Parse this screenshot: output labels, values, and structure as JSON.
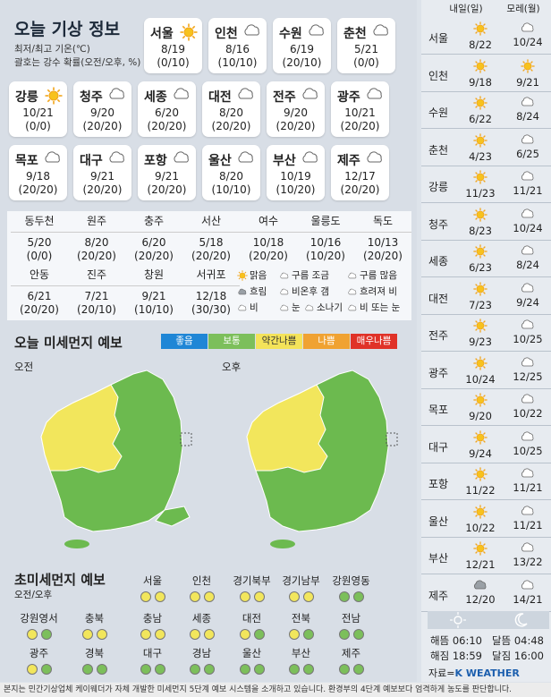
{
  "title": "오늘 기상 정보",
  "subtitle_line1": "최저/최고 기온(℃)",
  "subtitle_line2": "괄호는 강수 확률(오전/오후, %)",
  "cities": [
    {
      "name": "서울",
      "icon": "sun",
      "temp": "8/19",
      "rain": "(0/10)"
    },
    {
      "name": "인천",
      "icon": "cloud",
      "temp": "8/16",
      "rain": "(10/10)"
    },
    {
      "name": "수원",
      "icon": "cloud",
      "temp": "6/19",
      "rain": "(20/10)"
    },
    {
      "name": "춘천",
      "icon": "cloud",
      "temp": "5/21",
      "rain": "(0/0)"
    },
    {
      "name": "강릉",
      "icon": "sun",
      "temp": "10/21",
      "rain": "(0/0)"
    },
    {
      "name": "청주",
      "icon": "cloud",
      "temp": "9/20",
      "rain": "(20/20)"
    },
    {
      "name": "세종",
      "icon": "cloud",
      "temp": "6/20",
      "rain": "(20/20)"
    },
    {
      "name": "대전",
      "icon": "cloud",
      "temp": "8/20",
      "rain": "(20/20)"
    },
    {
      "name": "전주",
      "icon": "cloud",
      "temp": "9/20",
      "rain": "(20/20)"
    },
    {
      "name": "광주",
      "icon": "cloud",
      "temp": "10/21",
      "rain": "(20/20)"
    },
    {
      "name": "목포",
      "icon": "cloud",
      "temp": "9/18",
      "rain": "(20/20)"
    },
    {
      "name": "대구",
      "icon": "cloud",
      "temp": "9/21",
      "rain": "(20/20)"
    },
    {
      "name": "포항",
      "icon": "cloud",
      "temp": "9/21",
      "rain": "(20/20)"
    },
    {
      "name": "울산",
      "icon": "cloud",
      "temp": "8/20",
      "rain": "(10/10)"
    },
    {
      "name": "부산",
      "icon": "cloud",
      "temp": "10/19",
      "rain": "(10/20)"
    },
    {
      "name": "제주",
      "icon": "cloud",
      "temp": "12/17",
      "rain": "(20/20)"
    }
  ],
  "small_cities": [
    {
      "name": "동두천",
      "temp": "5/20",
      "rain": "(0/0)"
    },
    {
      "name": "원주",
      "temp": "8/20",
      "rain": "(20/20)"
    },
    {
      "name": "충주",
      "temp": "6/20",
      "rain": "(20/20)"
    },
    {
      "name": "서산",
      "temp": "5/18",
      "rain": "(20/20)"
    },
    {
      "name": "여수",
      "temp": "10/18",
      "rain": "(20/20)"
    },
    {
      "name": "울릉도",
      "temp": "10/16",
      "rain": "(10/20)"
    },
    {
      "name": "독도",
      "temp": "10/13",
      "rain": "(20/20)"
    },
    {
      "name": "안동",
      "temp": "6/21",
      "rain": "(20/20)"
    },
    {
      "name": "진주",
      "temp": "7/21",
      "rain": "(20/10)"
    },
    {
      "name": "창원",
      "temp": "9/21",
      "rain": "(10/10)"
    },
    {
      "name": "서귀포",
      "temp": "12/18",
      "rain": "(30/30)"
    }
  ],
  "weather_legend": [
    "맑음",
    "구름 조금",
    "구름 많음",
    "흐림",
    "비온후 갬",
    "흐려져 비",
    "비",
    "눈",
    "소나기",
    "비 또는 눈"
  ],
  "dust": {
    "title": "오늘 미세먼지 예보",
    "levels": [
      {
        "label": "좋음",
        "color": "#1f86d6"
      },
      {
        "label": "보통",
        "color": "#7cbf5b"
      },
      {
        "label": "약간나쁨",
        "color": "#f4e35a"
      },
      {
        "label": "나쁨",
        "color": "#f0a232"
      },
      {
        "label": "매우나쁨",
        "color": "#e03228"
      }
    ],
    "am": "오전",
    "pm": "오후"
  },
  "fine_dust": {
    "title": "초미세먼지 예보",
    "subtitle": "오전/오후",
    "regions": [
      {
        "name": "서울",
        "am": "yellow",
        "pm": "yellow"
      },
      {
        "name": "인천",
        "am": "yellow",
        "pm": "yellow"
      },
      {
        "name": "경기북부",
        "am": "yellow",
        "pm": "yellow"
      },
      {
        "name": "경기남부",
        "am": "yellow",
        "pm": "yellow"
      },
      {
        "name": "강원영동",
        "am": "green",
        "pm": "green"
      },
      {
        "name": "강원영서",
        "am": "yellow",
        "pm": "green"
      },
      {
        "name": "충북",
        "am": "yellow",
        "pm": "yellow"
      },
      {
        "name": "충남",
        "am": "yellow",
        "pm": "yellow"
      },
      {
        "name": "세종",
        "am": "yellow",
        "pm": "yellow"
      },
      {
        "name": "대전",
        "am": "yellow",
        "pm": "green"
      },
      {
        "name": "전북",
        "am": "yellow",
        "pm": "green"
      },
      {
        "name": "전남",
        "am": "green",
        "pm": "green"
      },
      {
        "name": "광주",
        "am": "yellow",
        "pm": "green"
      },
      {
        "name": "경북",
        "am": "green",
        "pm": "green"
      },
      {
        "name": "대구",
        "am": "green",
        "pm": "green"
      },
      {
        "name": "경남",
        "am": "green",
        "pm": "green"
      },
      {
        "name": "울산",
        "am": "green",
        "pm": "green"
      },
      {
        "name": "부산",
        "am": "green",
        "pm": "green"
      },
      {
        "name": "제주",
        "am": "green",
        "pm": "green"
      }
    ]
  },
  "forecast": {
    "col1": "내일(일)",
    "col2": "모레(월)",
    "rows": [
      {
        "name": "서울",
        "d1_icon": "sun",
        "d1": "8/22",
        "d2_icon": "cloud",
        "d2": "10/24"
      },
      {
        "name": "인천",
        "d1_icon": "sun",
        "d1": "9/18",
        "d2_icon": "sun",
        "d2": "9/21"
      },
      {
        "name": "수원",
        "d1_icon": "sun",
        "d1": "6/22",
        "d2_icon": "cloud",
        "d2": "8/24"
      },
      {
        "name": "춘천",
        "d1_icon": "sun",
        "d1": "4/23",
        "d2_icon": "cloud",
        "d2": "6/25"
      },
      {
        "name": "강릉",
        "d1_icon": "sun",
        "d1": "11/23",
        "d2_icon": "cloud",
        "d2": "11/21"
      },
      {
        "name": "청주",
        "d1_icon": "sun",
        "d1": "8/23",
        "d2_icon": "cloud",
        "d2": "10/24"
      },
      {
        "name": "세종",
        "d1_icon": "sun",
        "d1": "6/23",
        "d2_icon": "cloud",
        "d2": "8/24"
      },
      {
        "name": "대전",
        "d1_icon": "sun",
        "d1": "7/23",
        "d2_icon": "cloud",
        "d2": "9/24"
      },
      {
        "name": "전주",
        "d1_icon": "sun",
        "d1": "9/23",
        "d2_icon": "cloud",
        "d2": "10/25"
      },
      {
        "name": "광주",
        "d1_icon": "sun",
        "d1": "10/24",
        "d2_icon": "cloud",
        "d2": "12/25"
      },
      {
        "name": "목포",
        "d1_icon": "sun",
        "d1": "9/20",
        "d2_icon": "cloud",
        "d2": "10/22"
      },
      {
        "name": "대구",
        "d1_icon": "sun",
        "d1": "9/24",
        "d2_icon": "cloud",
        "d2": "10/25"
      },
      {
        "name": "포항",
        "d1_icon": "sun",
        "d1": "11/22",
        "d2_icon": "cloud",
        "d2": "11/21"
      },
      {
        "name": "울산",
        "d1_icon": "sun",
        "d1": "10/22",
        "d2_icon": "cloud",
        "d2": "11/21"
      },
      {
        "name": "부산",
        "d1_icon": "sun",
        "d1": "12/21",
        "d2_icon": "cloud",
        "d2": "13/22"
      },
      {
        "name": "제주",
        "d1_icon": "cloud-gray",
        "d1": "12/20",
        "d2_icon": "cloud",
        "d2": "14/21"
      }
    ]
  },
  "sun": {
    "rise": "해뜸 06:10",
    "set": "해짐 18:59",
    "moonrise": "달뜸 04:48",
    "moonset": "달짐 16:00"
  },
  "source_prefix": "자료=",
  "source_name": "K WEATHER",
  "footer": "본지는 민간기상업체 케이웨더가 자체 개발한 미세먼지 5단계 예보 시스템을 소개하고 있습니다. 환경부의 4단계 예보보다 엄격하게 농도를 판단합니다."
}
